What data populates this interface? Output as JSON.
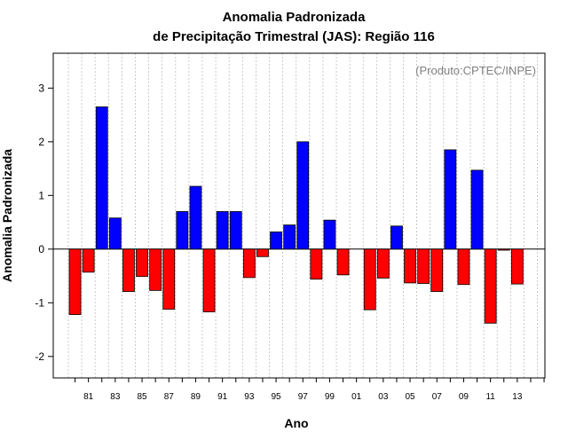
{
  "chart_data": {
    "type": "bar",
    "title": "Anomalia Padronizada",
    "subtitle": "de Precipitação Trimestral (JAS): Região 116",
    "xlabel": "Ano",
    "ylabel": "Anomalia Padronizada",
    "credit": "(Produto:CPTEC/INPE)",
    "ylim": [
      -2.4,
      3.65
    ],
    "yticks": [
      -2,
      -1,
      0,
      1,
      2,
      3
    ],
    "grid": "vertical-dotted",
    "positive_color": "#0000ff",
    "negative_color": "#ff0000",
    "tick_labels": [
      "81",
      "83",
      "85",
      "87",
      "89",
      "91",
      "93",
      "95",
      "97",
      "99",
      "01",
      "03",
      "05",
      "07",
      "09",
      "11",
      "13"
    ],
    "categories": [
      "80",
      "81",
      "82",
      "83",
      "84",
      "85",
      "86",
      "87",
      "88",
      "89",
      "90",
      "91",
      "92",
      "93",
      "94",
      "95",
      "96",
      "97",
      "98",
      "99",
      "00",
      "01",
      "02",
      "03",
      "04",
      "05",
      "06",
      "07",
      "08",
      "09",
      "10",
      "11",
      "12",
      "13",
      "14",
      "15"
    ],
    "values": [
      -1.22,
      -0.43,
      2.65,
      0.58,
      -0.79,
      -0.51,
      -0.77,
      -1.12,
      0.7,
      1.17,
      -1.17,
      0.7,
      0.7,
      -0.53,
      -0.14,
      0.32,
      0.45,
      2.0,
      -0.56,
      0.54,
      -0.48,
      0,
      -1.13,
      -0.54,
      0.43,
      -0.63,
      -0.64,
      -0.79,
      1.85,
      -0.66,
      1.47,
      -1.38,
      -0.02,
      -0.65,
      0,
      0
    ]
  }
}
